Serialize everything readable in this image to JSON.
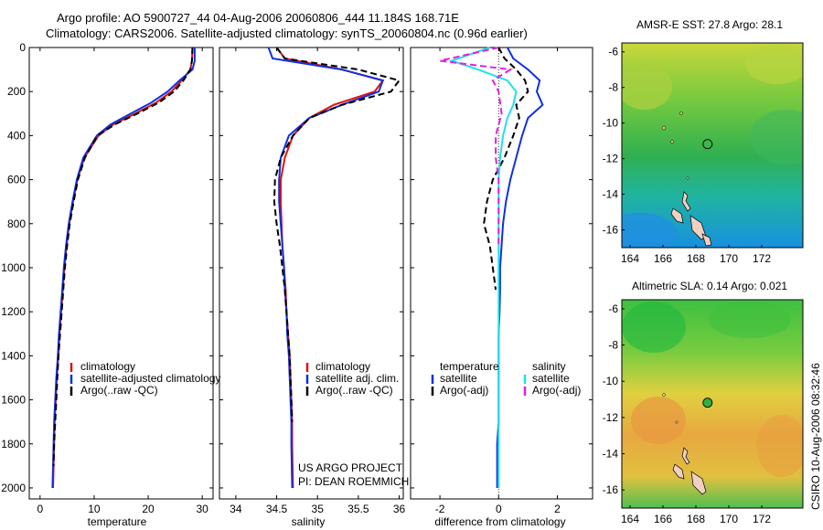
{
  "title": {
    "line1": "Argo profile: AO 5900727_44 04-Aug-2006 20060806_444 11.184S 168.71E",
    "line2": "Climatology: CARS2006. Satellite-adjusted climatology: synTS_20060804.nc (0.96d earlier)"
  },
  "colors": {
    "clim": "#e01010",
    "sat": "#1030e0",
    "argo": "#000000",
    "sat_diff_s": "#20e0e8",
    "argo_diff_s": "#e020e0"
  },
  "chart_data": [
    {
      "type": "line",
      "id": "temperature-profile",
      "xlabel": "temperature",
      "ylabel": "",
      "xlim": [
        -2,
        32
      ],
      "ylim": [
        2050,
        0
      ],
      "y_reversed": true,
      "xticks": [
        "0",
        "10",
        "20",
        "30"
      ],
      "yticks": [
        "0",
        "200",
        "400",
        "600",
        "800",
        "1000",
        "1200",
        "1400",
        "1600",
        "1800",
        "2000"
      ],
      "series": [
        {
          "name": "climatology",
          "color": "#e01010",
          "style": "solid",
          "x": [
            28.2,
            28.1,
            27.8,
            26.2,
            24.3,
            21.5,
            17.6,
            13.5,
            10.8,
            8.2,
            6.9,
            6.1,
            5.4,
            4.9,
            4.5,
            4.2,
            3.9,
            3.6,
            3.4,
            3.1,
            2.9,
            2.7,
            2.6,
            2.5,
            2.4
          ],
          "y": [
            0,
            60,
            100,
            150,
            200,
            250,
            300,
            350,
            400,
            500,
            600,
            700,
            800,
            900,
            1000,
            1100,
            1200,
            1300,
            1400,
            1500,
            1600,
            1700,
            1800,
            1900,
            2000
          ]
        },
        {
          "name": "satellite-adjusted climatology",
          "color": "#1030e0",
          "style": "solid",
          "x": [
            28.6,
            28.6,
            28.2,
            25.8,
            23.6,
            20.6,
            16.8,
            13.0,
            10.5,
            8.0,
            6.8,
            6.0,
            5.3,
            4.8,
            4.4,
            4.1,
            3.8,
            3.5,
            3.3,
            3.0,
            2.8,
            2.6,
            2.5,
            2.4,
            2.3
          ],
          "y": [
            0,
            60,
            100,
            150,
            200,
            250,
            300,
            350,
            400,
            500,
            600,
            700,
            800,
            900,
            1000,
            1100,
            1200,
            1300,
            1400,
            1500,
            1600,
            1700,
            1800,
            1900,
            2000
          ]
        },
        {
          "name": "Argo(..raw -QC)",
          "color": "#000000",
          "style": "dashed",
          "x": [
            28.2,
            28.1,
            27.8,
            26.5,
            24.8,
            22.0,
            18.0,
            13.8,
            10.6,
            8.3,
            7.0,
            6.2,
            5.5,
            5.0,
            4.6,
            4.3,
            4.0,
            3.7,
            3.4,
            3.2,
            3.0,
            2.8,
            2.6,
            2.5
          ],
          "y": [
            0,
            60,
            100,
            150,
            200,
            250,
            300,
            350,
            400,
            500,
            600,
            700,
            800,
            900,
            1000,
            1100,
            1200,
            1300,
            1400,
            1500,
            1600,
            1700,
            1800,
            1900
          ]
        }
      ],
      "legend": [
        "climatology",
        "satellite-adjusted climatology",
        "Argo(..raw -QC)"
      ],
      "legend_position": "lower-middle"
    },
    {
      "type": "line",
      "id": "salinity-profile",
      "xlabel": "salinity",
      "ylabel": "",
      "xlim": [
        33.8,
        36.05
      ],
      "ylim": [
        2050,
        0
      ],
      "y_reversed": true,
      "xticks": [
        "34",
        "34.5",
        "35",
        "35.5",
        "36"
      ],
      "series": [
        {
          "name": "climatology",
          "color": "#e01010",
          "style": "solid",
          "x": [
            34.5,
            34.6,
            35.3,
            35.8,
            35.7,
            35.2,
            34.9,
            34.7,
            34.6,
            34.55,
            34.55,
            34.56,
            34.57,
            34.59,
            34.61,
            34.62,
            34.64,
            34.66,
            34.67,
            34.68,
            34.69,
            34.69,
            34.7
          ],
          "y": [
            0,
            50,
            100,
            150,
            200,
            260,
            320,
            400,
            500,
            600,
            700,
            800,
            900,
            1000,
            1100,
            1200,
            1300,
            1400,
            1500,
            1600,
            1700,
            1800,
            2000
          ]
        },
        {
          "name": "satellite adj. clim.",
          "color": "#1030e0",
          "style": "solid",
          "x": [
            34.4,
            34.45,
            35.3,
            35.8,
            35.75,
            35.3,
            34.9,
            34.65,
            34.55,
            34.53,
            34.53,
            34.55,
            34.57,
            34.59,
            34.6,
            34.62,
            34.63,
            34.65,
            34.66,
            34.67,
            34.68,
            34.68,
            34.69
          ],
          "y": [
            0,
            50,
            100,
            150,
            200,
            260,
            320,
            400,
            500,
            600,
            700,
            800,
            900,
            1000,
            1100,
            1200,
            1300,
            1400,
            1500,
            1600,
            1700,
            1800,
            2000
          ]
        },
        {
          "name": "Argo(..raw -QC)",
          "color": "#000000",
          "style": "dashed",
          "x": [
            34.5,
            34.6,
            35.5,
            36.0,
            35.9,
            35.3,
            34.9,
            34.7,
            34.55,
            34.48,
            34.47,
            34.5,
            34.54,
            34.57,
            34.6,
            34.62,
            34.64,
            34.66,
            34.67,
            34.68,
            34.69
          ],
          "y": [
            0,
            50,
            100,
            150,
            200,
            260,
            320,
            400,
            500,
            600,
            700,
            800,
            900,
            1000,
            1100,
            1200,
            1300,
            1400,
            1500,
            1600,
            1700
          ]
        }
      ],
      "legend": [
        "climatology",
        "satellite adj. clim.",
        "Argo(..raw -QC)"
      ],
      "legend_position": "lower-middle",
      "annotations": [
        "US ARGO PROJECT",
        "PI: DEAN ROEMMICH"
      ]
    },
    {
      "type": "line",
      "id": "difference-from-climatology",
      "xlabel": "difference from climatology",
      "ylabel": "",
      "xlim": [
        -3,
        3.2
      ],
      "ylim": [
        2050,
        0
      ],
      "y_reversed": true,
      "xticks": [
        "-2",
        "0",
        "2"
      ],
      "series": [
        {
          "name": "temperature: satellite",
          "color": "#1030e0",
          "style": "solid",
          "x": [
            0.3,
            0.5,
            1.0,
            1.4,
            1.3,
            1.5,
            1.0,
            0.8,
            0.6,
            0.4,
            0.25,
            0.15,
            0.1,
            0.05,
            0.05,
            0.03,
            0.0,
            0.0,
            0.0,
            0.0,
            0.0,
            -0.05,
            -0.05
          ],
          "y": [
            0,
            50,
            100,
            150,
            200,
            260,
            320,
            400,
            500,
            600,
            700,
            800,
            900,
            1000,
            1100,
            1200,
            1300,
            1400,
            1500,
            1600,
            1700,
            1800,
            2000
          ]
        },
        {
          "name": "temperature: Argo(-adj)",
          "color": "#000000",
          "style": "dashed",
          "x": [
            0.0,
            0.2,
            0.6,
            0.9,
            1.0,
            0.6,
            0.7,
            0.5,
            0.2,
            -0.2,
            -0.4,
            -0.5,
            -0.3,
            -0.2,
            -0.1
          ],
          "y": [
            0,
            50,
            100,
            150,
            200,
            260,
            320,
            400,
            500,
            600,
            700,
            800,
            900,
            1000,
            1100
          ]
        },
        {
          "name": "salinity: satellite",
          "color": "#20e0e8",
          "style": "solid",
          "x": [
            -0.3,
            -1.6,
            -0.7,
            0.3,
            0.6,
            0.5,
            0.3,
            0.15,
            0.05,
            0.0,
            0.0,
            0.0,
            0.0,
            0.0,
            0.0,
            0.0,
            0.0,
            0.0,
            0.0,
            0.0
          ],
          "y": [
            0,
            60,
            100,
            150,
            200,
            260,
            320,
            400,
            500,
            600,
            700,
            800,
            900,
            1000,
            1200,
            1400,
            1600,
            1800,
            1900,
            2000
          ]
        },
        {
          "name": "salinity: Argo(-adj)",
          "color": "#e020e0",
          "style": "dashed",
          "x": [
            0.0,
            -2.0,
            0.4,
            -0.2,
            0.0,
            0.1,
            -0.1,
            -0.1,
            0.0,
            0.0,
            0.0,
            0.0
          ],
          "y": [
            0,
            60,
            100,
            150,
            200,
            300,
            400,
            500,
            600,
            700,
            800,
            900
          ]
        }
      ],
      "legend": [
        "temperature",
        "satellite",
        "Argo(-adj)",
        "salinity",
        "satellite",
        "Argo(-adj)"
      ],
      "legend_position": "lower-middle"
    },
    {
      "type": "heatmap",
      "id": "amsr-sst-map",
      "title": "AMSR-E SST: 27.8 Argo: 28.1",
      "xlim": [
        163.5,
        174.5
      ],
      "ylim": [
        -17,
        -5.5
      ],
      "xticks": [
        "164",
        "166",
        "168",
        "170",
        "172"
      ],
      "yticks": [
        "-6",
        "-8",
        "-10",
        "-12",
        "-14",
        "-16"
      ],
      "profile_location": {
        "lon": 168.71,
        "lat": -11.184
      }
    },
    {
      "type": "heatmap",
      "id": "altimetric-sla-map",
      "title": "Altimetric SLA: 0.14 Argo: 0.021",
      "xlim": [
        163.5,
        174.5
      ],
      "ylim": [
        -17,
        -5.5
      ],
      "xticks": [
        "164",
        "166",
        "168",
        "170",
        "172"
      ],
      "yticks": [
        "-6",
        "-8",
        "-10",
        "-12",
        "-14",
        "-16"
      ],
      "profile_location": {
        "lon": 168.71,
        "lat": -11.184
      }
    }
  ],
  "credit": "CSIRO 10-Aug-2006 08:32:46"
}
